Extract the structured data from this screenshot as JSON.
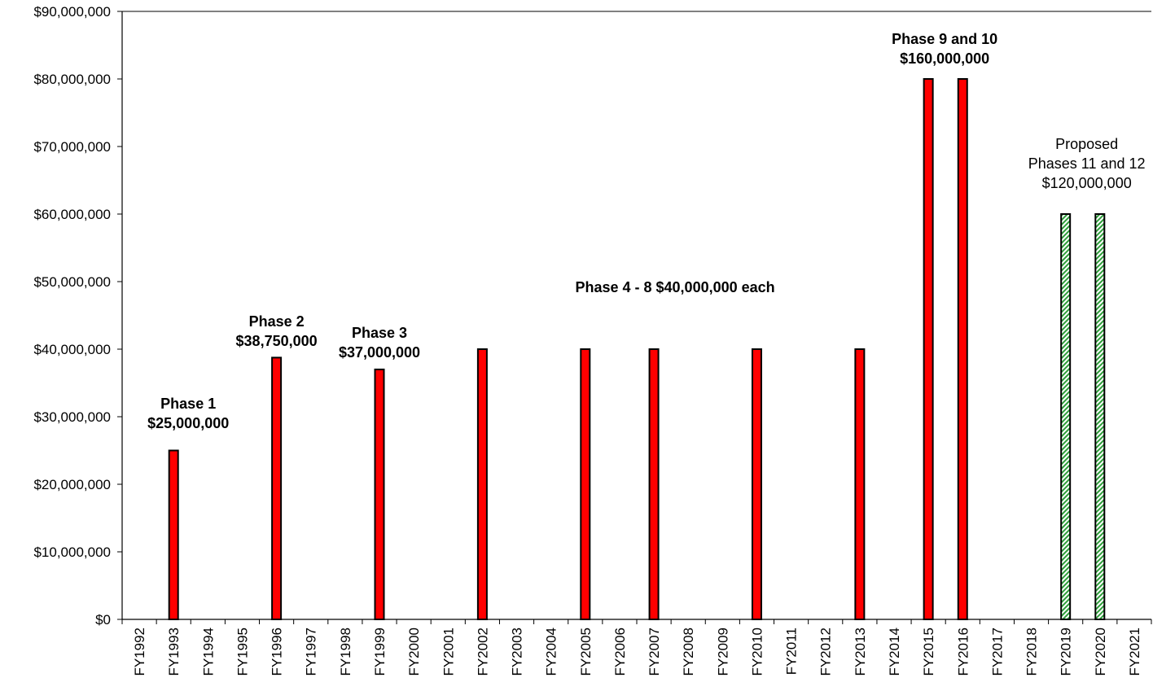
{
  "chart_data": {
    "type": "bar",
    "title": "",
    "xlabel": "",
    "ylabel": "",
    "ylim": [
      0,
      90000000
    ],
    "y_ticks": [
      "$0",
      "$10,000,000",
      "$20,000,000",
      "$30,000,000",
      "$40,000,000",
      "$50,000,000",
      "$60,000,000",
      "$70,000,000",
      "$80,000,000",
      "$90,000,000"
    ],
    "grid": false,
    "legend": "none",
    "categories": [
      "FY1992",
      "FY1993",
      "FY1994",
      "FY1995",
      "FY1996",
      "FY1997",
      "FY1998",
      "FY1999",
      "FY2000",
      "FY2001",
      "FY2002",
      "FY2003",
      "FY2004",
      "FY2005",
      "FY2006",
      "FY2007",
      "FY2008",
      "FY2009",
      "FY2010",
      "FY2011",
      "FY2012",
      "FY2013",
      "FY2014",
      "FY2015",
      "FY2016",
      "FY2017",
      "FY2018",
      "FY2019",
      "FY2020",
      "FY2021"
    ],
    "values": [
      0,
      25000000,
      0,
      0,
      38750000,
      0,
      0,
      37000000,
      0,
      0,
      40000000,
      0,
      0,
      40000000,
      0,
      40000000,
      0,
      0,
      40000000,
      0,
      0,
      40000000,
      0,
      80000000,
      80000000,
      0,
      0,
      60000000,
      60000000,
      0
    ],
    "bar_styles": [
      "funded",
      "funded",
      "funded",
      "funded",
      "funded",
      "funded",
      "funded",
      "funded",
      "funded",
      "funded",
      "funded",
      "funded",
      "funded",
      "funded",
      "funded",
      "funded",
      "funded",
      "funded",
      "funded",
      "funded",
      "funded",
      "funded",
      "funded",
      "funded",
      "funded",
      "funded",
      "funded",
      "proposed",
      "proposed",
      "funded"
    ],
    "colors": {
      "funded": "#ff0000",
      "proposed_stripe": "#2e9e3a",
      "proposed_bg": "#ffffff",
      "outline": "#000000",
      "axis": "#000000"
    },
    "annotations": [
      {
        "lines": [
          "Phase 1",
          "$25,000,000"
        ],
        "bold": true,
        "anchor_category": "FY1993"
      },
      {
        "lines": [
          "Phase 2",
          "$38,750,000"
        ],
        "bold": true,
        "anchor_category": "FY1996"
      },
      {
        "lines": [
          "Phase 3",
          "$37,000,000"
        ],
        "bold": true,
        "anchor_category": "FY1999"
      },
      {
        "lines": [
          "Phase 4 - 8 $40,000,000 each"
        ],
        "bold": true,
        "anchor_category": "FY2007"
      },
      {
        "lines": [
          "Phase 9 and 10",
          "$160,000,000"
        ],
        "bold": true,
        "anchor_category": "FY2015"
      },
      {
        "lines": [
          "Proposed",
          "Phases 11 and 12",
          "$120,000,000"
        ],
        "bold": false,
        "anchor_category": "FY2019"
      }
    ]
  }
}
